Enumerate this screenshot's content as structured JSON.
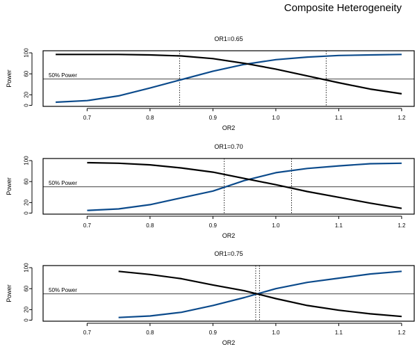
{
  "page": {
    "title": "Composite Heterogeneity"
  },
  "colors": {
    "blue_series": "#0b4a8b",
    "black_series": "#000000",
    "axis": "#000000"
  },
  "chart_data": [
    {
      "type": "line",
      "title": "OR1=0.65",
      "xlabel": "OR2",
      "ylabel": "Power",
      "xlim": [
        0.63,
        1.22
      ],
      "ylim": [
        -2,
        104
      ],
      "xticks": [
        0.7,
        0.8,
        0.9,
        1.0,
        1.1,
        1.2
      ],
      "xtick_labels": [
        "0.7",
        "0.8",
        "0.9",
        "1.0",
        "1.1",
        "1.2"
      ],
      "yticks": [
        0,
        20,
        60,
        100
      ],
      "ytick_labels": [
        "0",
        "20",
        "60",
        "100"
      ],
      "reference_line": {
        "y": 50,
        "label": "50% Power"
      },
      "vlines": [
        0.847,
        1.08
      ],
      "series": [
        {
          "name": "increasing",
          "color": "#0b4a8b",
          "x": [
            0.65,
            0.7,
            0.75,
            0.8,
            0.85,
            0.9,
            0.95,
            1.0,
            1.05,
            1.1,
            1.15,
            1.2
          ],
          "values": [
            6,
            9,
            18,
            33,
            49,
            65,
            78,
            87,
            92,
            95,
            96,
            97
          ]
        },
        {
          "name": "decreasing",
          "color": "#000000",
          "x": [
            0.65,
            0.7,
            0.75,
            0.8,
            0.85,
            0.9,
            0.95,
            1.0,
            1.05,
            1.1,
            1.15,
            1.2
          ],
          "values": [
            97,
            97,
            97,
            96,
            94,
            89,
            80,
            69,
            56,
            43,
            31,
            22
          ]
        }
      ]
    },
    {
      "type": "line",
      "title": "OR1=0.70",
      "xlabel": "OR2",
      "ylabel": "Power",
      "xlim": [
        0.63,
        1.22
      ],
      "ylim": [
        -2,
        104
      ],
      "xticks": [
        0.7,
        0.8,
        0.9,
        1.0,
        1.1,
        1.2
      ],
      "xtick_labels": [
        "0.7",
        "0.8",
        "0.9",
        "1.0",
        "1.1",
        "1.2"
      ],
      "yticks": [
        0,
        20,
        60,
        100
      ],
      "ytick_labels": [
        "0",
        "20",
        "60",
        "100"
      ],
      "reference_line": {
        "y": 50,
        "label": "50% Power"
      },
      "vlines": [
        0.918,
        1.025
      ],
      "series": [
        {
          "name": "increasing",
          "color": "#0b4a8b",
          "x": [
            0.7,
            0.75,
            0.8,
            0.85,
            0.9,
            0.95,
            1.0,
            1.05,
            1.1,
            1.15,
            1.2
          ],
          "values": [
            5,
            8,
            16,
            29,
            42,
            62,
            77,
            85,
            90,
            94,
            95
          ]
        },
        {
          "name": "decreasing",
          "color": "#000000",
          "x": [
            0.7,
            0.75,
            0.8,
            0.85,
            0.9,
            0.95,
            1.0,
            1.05,
            1.1,
            1.15,
            1.2
          ],
          "values": [
            96,
            95,
            92,
            86,
            78,
            66,
            54,
            41,
            30,
            19,
            9
          ]
        }
      ]
    },
    {
      "type": "line",
      "title": "OR1=0.75",
      "xlabel": "OR2",
      "ylabel": "Power",
      "xlim": [
        0.63,
        1.22
      ],
      "ylim": [
        -2,
        104
      ],
      "xticks": [
        0.7,
        0.8,
        0.9,
        1.0,
        1.1,
        1.2
      ],
      "xtick_labels": [
        "0.7",
        "0.8",
        "0.9",
        "1.0",
        "1.1",
        "1.2"
      ],
      "yticks": [
        0,
        20,
        60,
        100
      ],
      "ytick_labels": [
        "0",
        "20",
        "60",
        "100"
      ],
      "reference_line": {
        "y": 50,
        "label": "50% Power"
      },
      "vlines": [
        0.968,
        0.974
      ],
      "series": [
        {
          "name": "increasing",
          "color": "#0b4a8b",
          "x": [
            0.75,
            0.8,
            0.85,
            0.9,
            0.95,
            1.0,
            1.05,
            1.1,
            1.15,
            1.2
          ],
          "values": [
            5,
            8,
            15,
            28,
            43,
            60,
            72,
            80,
            88,
            93
          ]
        },
        {
          "name": "decreasing",
          "color": "#000000",
          "x": [
            0.75,
            0.8,
            0.85,
            0.9,
            0.95,
            1.0,
            1.05,
            1.1,
            1.15,
            1.2
          ],
          "values": [
            93,
            87,
            79,
            67,
            56,
            41,
            28,
            19,
            12,
            7
          ]
        }
      ]
    }
  ]
}
